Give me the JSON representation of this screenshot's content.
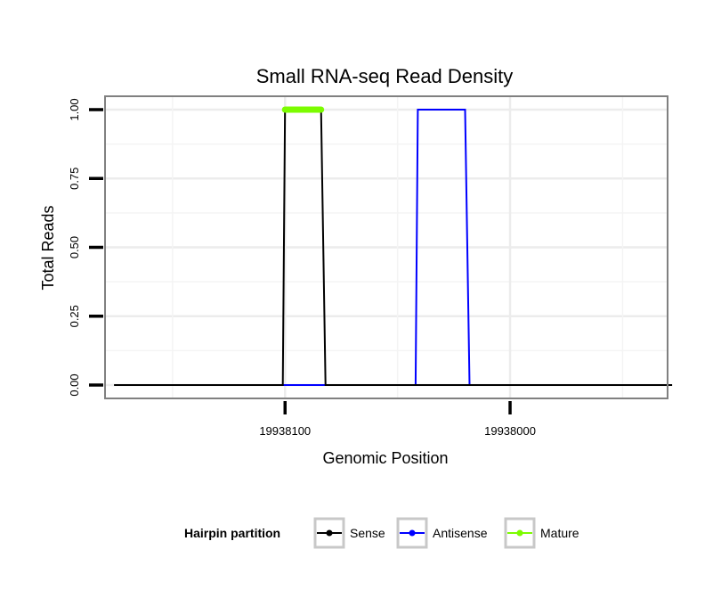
{
  "chart_data": {
    "type": "line",
    "title": "Small RNA-seq Read Density",
    "xlabel": "Genomic Position",
    "ylabel": "Total Reads",
    "x_reversed": true,
    "xlim": [
      19938180,
      19937930
    ],
    "ylim": [
      0,
      1.05
    ],
    "x_ticks": [
      {
        "value": 19938100,
        "label": "19938100"
      },
      {
        "value": 19938000,
        "label": "19938000"
      }
    ],
    "y_ticks": [
      {
        "value": 0,
        "label": "0.00"
      },
      {
        "value": 0.25,
        "label": "0.25"
      },
      {
        "value": 0.5,
        "label": "0.50"
      },
      {
        "value": 0.75,
        "label": "0.75"
      },
      {
        "value": 1,
        "label": "1.00"
      }
    ],
    "grid": true,
    "legend_position": "bottom",
    "legend_title": "Hairpin partition",
    "series": [
      {
        "name": "Sense",
        "color": "#000000",
        "points": [
          [
            19938176,
            0
          ],
          [
            19938101,
            0
          ],
          [
            19938100,
            1
          ],
          [
            19938084,
            1
          ],
          [
            19938082,
            0
          ],
          [
            19937928,
            0
          ]
        ]
      },
      {
        "name": "Antisense",
        "color": "#0000ff",
        "points": [
          [
            19938101,
            0
          ],
          [
            19938082,
            0
          ],
          [
            19938042,
            0
          ],
          [
            19938041,
            1
          ],
          [
            19938020,
            1
          ],
          [
            19938018,
            0
          ],
          [
            19937995,
            0
          ]
        ]
      },
      {
        "name": "Mature",
        "color": "#7cfc00",
        "points": [
          [
            19938100,
            1
          ],
          [
            19938084,
            1
          ]
        ]
      }
    ]
  }
}
